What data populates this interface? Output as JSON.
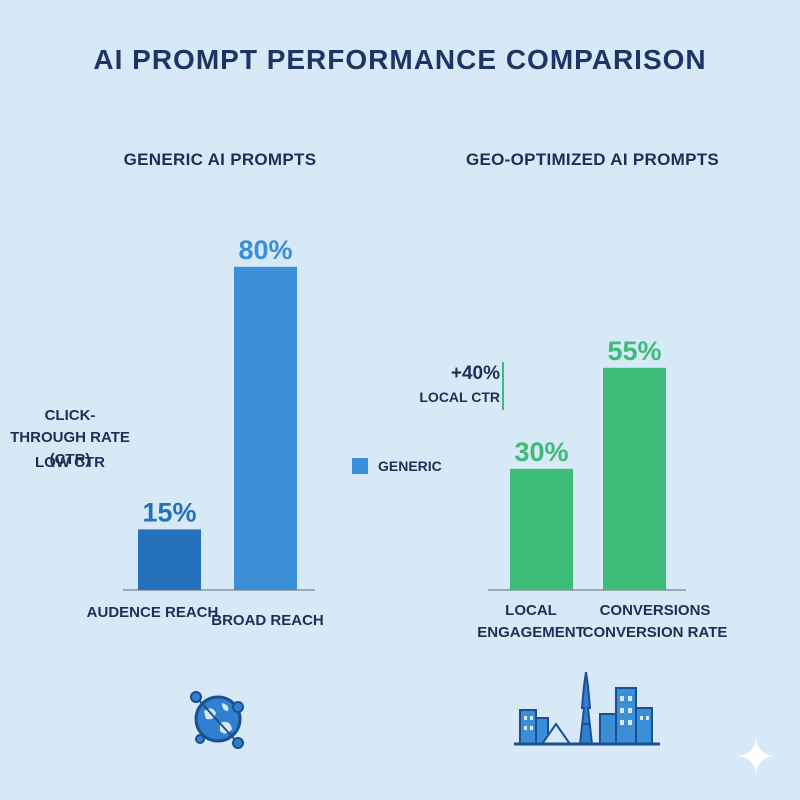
{
  "title": "AI PROMPT PERFORMANCE COMPARISON",
  "colors": {
    "background": "#d7e9f7",
    "generic_dark": "#2472bd",
    "generic_light": "#3a8fd8",
    "geo_green": "#3dbb78",
    "text": "#1c2f55"
  },
  "panels": {
    "left_title": "GENERIC AI PROMPTS",
    "right_title": "GEO-OPTIMIZED AI PROMPTS"
  },
  "annotations": {
    "ctr_label": "CLICK-THROUGH RATE (CTR)",
    "low_ctr": "LOW CTR",
    "uplift_value": "+40%",
    "uplift_label": "LOCAL CTR"
  },
  "legend": {
    "generic": "GENERIC"
  },
  "categories": {
    "audience_reach": "AUDENCE REACH",
    "broad_reach": "BROAD REACH",
    "local_engagement": "LOCAL ENGAGEMENT",
    "conversions": "CONVERSIONS CONVERSION RATE"
  },
  "icons": [
    "globe-network-icon",
    "city-skyline-icon",
    "sparkle-icon"
  ],
  "chart_data": [
    {
      "type": "bar",
      "title": "GENERIC AI PROMPTS",
      "categories": [
        "AUDENCE REACH",
        "BROAD REACH"
      ],
      "values": [
        15,
        80
      ],
      "labels": [
        "15%",
        "80%"
      ],
      "ylim": [
        0,
        100
      ],
      "grid": false
    },
    {
      "type": "bar",
      "title": "GEO-OPTIMIZED AI PROMPTS",
      "categories": [
        "LOCAL ENGAGEMENT",
        "CONVERSIONS CONVERSION RATE"
      ],
      "values": [
        30,
        55
      ],
      "labels": [
        "30%",
        "55%"
      ],
      "ylim": [
        0,
        100
      ],
      "grid": false
    }
  ]
}
